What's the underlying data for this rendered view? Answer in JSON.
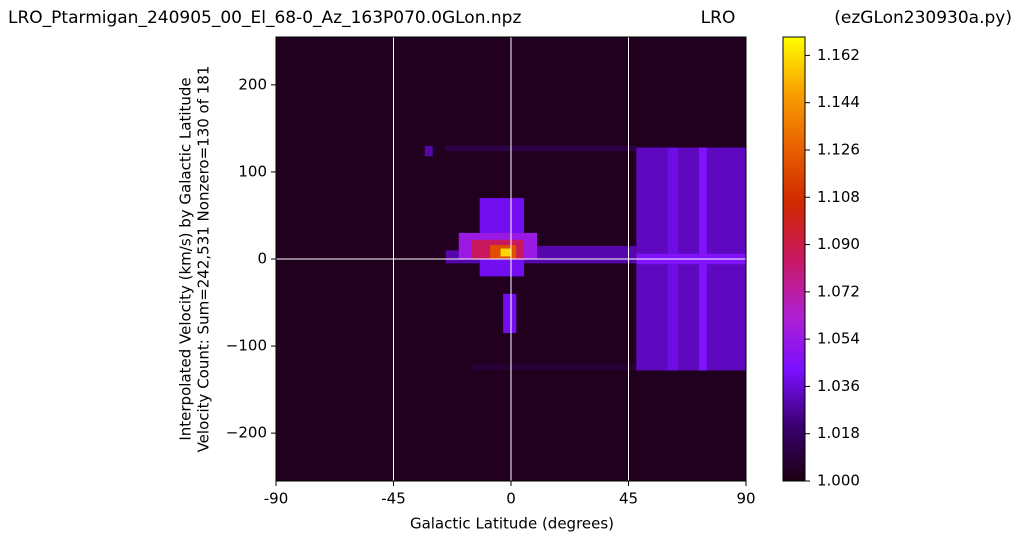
{
  "chart_data": {
    "type": "heatmap",
    "title": "LRO_Ptarmigan_240905_00_El_68-0_Az_163P070.0GLon.npz",
    "title_center": "LRO",
    "title_right": "(ezGLon230930a.py)",
    "x_label": "Galactic Latitude (degrees)",
    "y_label_lines": [
      "Interpolated Velocity (km/s) by Galactic Latitude",
      "Velocity Count: Sum=242,531 Nonzero=130 of 181"
    ],
    "xlim": [
      -90,
      90
    ],
    "ylim": [
      -255,
      255
    ],
    "xticks": [
      -90,
      -45,
      0,
      45,
      90
    ],
    "yticks": [
      {
        "value": -200,
        "label": "−200"
      },
      {
        "value": -100,
        "label": "−100"
      },
      0,
      100,
      200
    ],
    "grid_x": [
      -45,
      0,
      45
    ],
    "grid_y": [
      0
    ],
    "grid_color": "#ffffff",
    "colormap": [
      "#1c0010",
      "#3a0070",
      "#7a10ff",
      "#b020d0",
      "#c81860",
      "#d02800",
      "#e86000",
      "#f8a000",
      "#ffff00"
    ],
    "clim": [
      1.0,
      1.169
    ],
    "cticks": [
      {
        "value": 1.0,
        "label": "1.000"
      },
      {
        "value": 1.018,
        "label": "1.018"
      },
      {
        "value": 1.036,
        "label": "1.036"
      },
      {
        "value": 1.054,
        "label": "1.054"
      },
      {
        "value": 1.072,
        "label": "1.072"
      },
      {
        "value": 1.09,
        "label": "1.090"
      },
      {
        "value": 1.108,
        "label": "1.108"
      },
      {
        "value": 1.126,
        "label": "1.126"
      },
      {
        "value": 1.144,
        "label": "1.144"
      },
      {
        "value": 1.162,
        "label": "1.162"
      }
    ],
    "cells": [
      {
        "x": [
          -90,
          90
        ],
        "y": [
          -255,
          255
        ],
        "value": 1.003
      },
      {
        "x": [
          -25,
          48
        ],
        "y": [
          124,
          130
        ],
        "value": 1.012
      },
      {
        "x": [
          -33,
          -30
        ],
        "y": [
          118,
          130
        ],
        "value": 1.03
      },
      {
        "x": [
          -15,
          48
        ],
        "y": [
          -128,
          -120
        ],
        "value": 1.008
      },
      {
        "x": [
          48,
          90
        ],
        "y": [
          -128,
          128
        ],
        "value": 1.033
      },
      {
        "x": [
          60,
          64
        ],
        "y": [
          -128,
          128
        ],
        "value": 1.038
      },
      {
        "x": [
          72,
          75
        ],
        "y": [
          -128,
          128
        ],
        "value": 1.045
      },
      {
        "x": [
          48,
          90
        ],
        "y": [
          -6,
          6
        ],
        "value": 1.045
      },
      {
        "x": [
          5,
          48
        ],
        "y": [
          -5,
          15
        ],
        "value": 1.03
      },
      {
        "x": [
          -25,
          -12
        ],
        "y": [
          -5,
          10
        ],
        "value": 1.03
      },
      {
        "x": [
          -12,
          5
        ],
        "y": [
          -20,
          70
        ],
        "value": 1.04
      },
      {
        "x": [
          -3,
          2
        ],
        "y": [
          -85,
          -40
        ],
        "value": 1.04
      },
      {
        "x": [
          -20,
          10
        ],
        "y": [
          0,
          30
        ],
        "value": 1.055
      },
      {
        "x": [
          -15,
          5
        ],
        "y": [
          0,
          22
        ],
        "value": 1.085
      },
      {
        "x": [
          -8,
          2
        ],
        "y": [
          0,
          16
        ],
        "value": 1.12
      },
      {
        "x": [
          -4,
          0
        ],
        "y": [
          3,
          12
        ],
        "value": 1.16
      }
    ]
  }
}
